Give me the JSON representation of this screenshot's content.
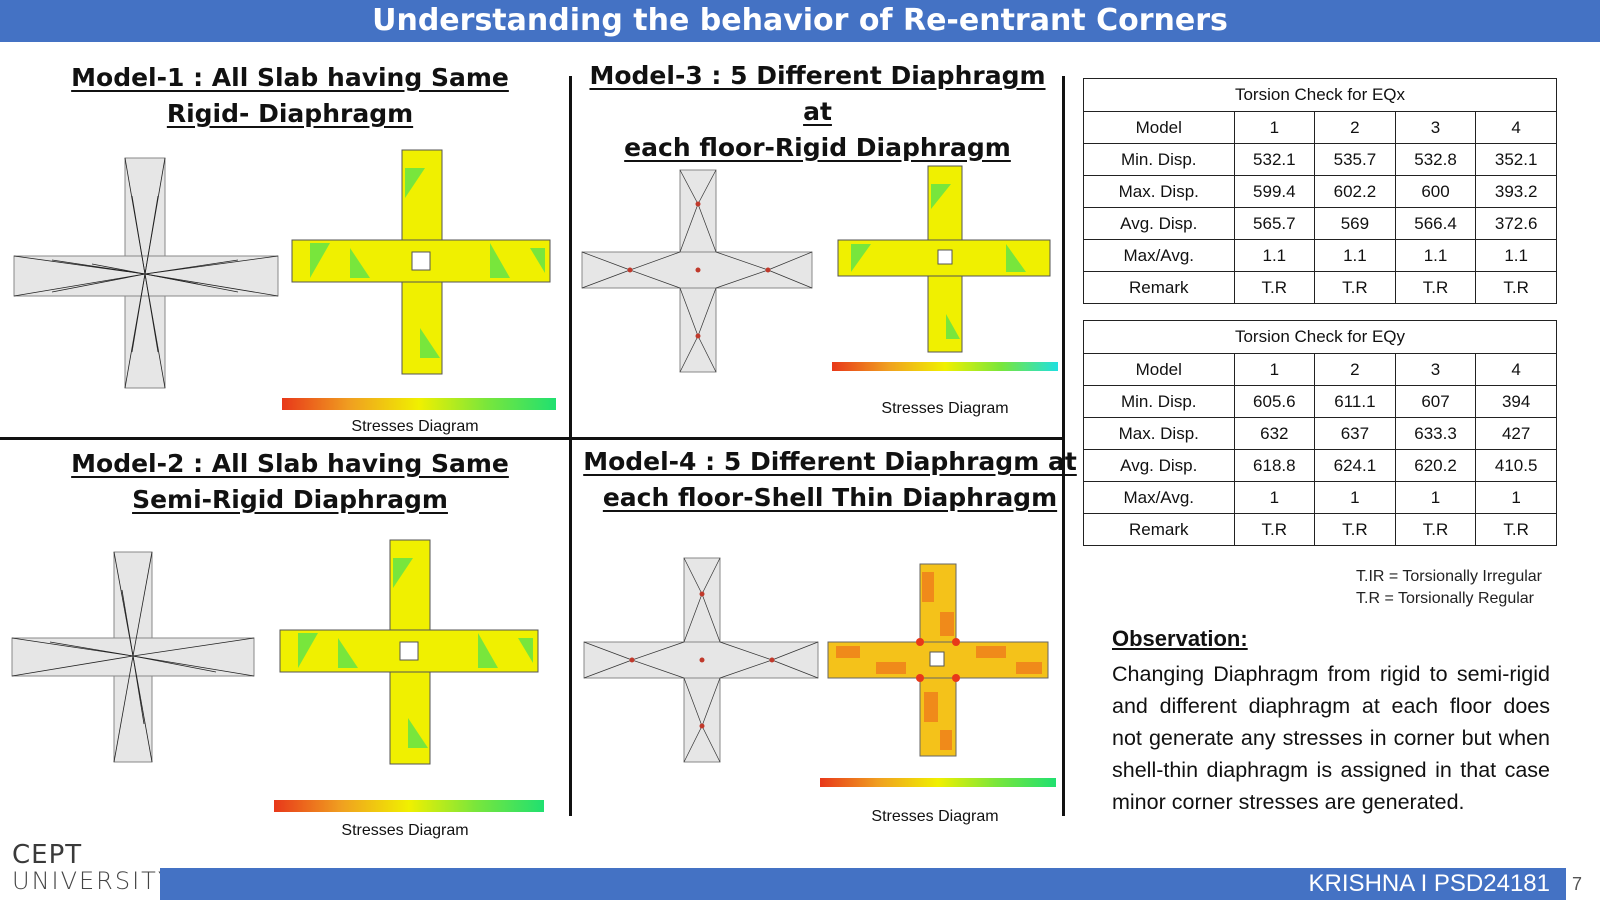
{
  "header": {
    "title": "Understanding the behavior of Re-entrant Corners"
  },
  "models": [
    {
      "title_l1": "Model-1 : All Slab having Same",
      "title_l2": "Rigid- Diaphragm",
      "caption": "Stresses Diagram"
    },
    {
      "title_l1": "Model-2 : All Slab having Same",
      "title_l2": "Semi-Rigid Diaphragm",
      "caption": "Stresses Diagram"
    },
    {
      "title_l1": "Model-3 : 5 Different Diaphragm at",
      "title_l2": "each floor-Rigid Diaphragm",
      "caption": "Stresses Diagram"
    },
    {
      "title_l1": "Model-4 : 5 Different Diaphragm at",
      "title_l2": "each floor-Shell Thin Diaphragm",
      "caption": "Stresses Diagram"
    }
  ],
  "tables": [
    {
      "title": "Torsion Check for EQx",
      "header": [
        "Model",
        "1",
        "2",
        "3",
        "4"
      ],
      "rows": [
        [
          "Min. Disp.",
          "532.1",
          "535.7",
          "532.8",
          "352.1"
        ],
        [
          "Max. Disp.",
          "599.4",
          "602.2",
          "600",
          "393.2"
        ],
        [
          "Avg. Disp.",
          "565.7",
          "569",
          "566.4",
          "372.6"
        ],
        [
          "Max/Avg.",
          "1.1",
          "1.1",
          "1.1",
          "1.1"
        ],
        [
          "Remark",
          "T.R",
          "T.R",
          "T.R",
          "T.R"
        ]
      ]
    },
    {
      "title": "Torsion Check for EQy",
      "header": [
        "Model",
        "1",
        "2",
        "3",
        "4"
      ],
      "rows": [
        [
          "Min. Disp.",
          "605.6",
          "611.1",
          "607",
          "394"
        ],
        [
          "Max. Disp.",
          "632",
          "637",
          "633.3",
          "427"
        ],
        [
          "Avg. Disp.",
          "618.8",
          "624.1",
          "620.2",
          "410.5"
        ],
        [
          "Max/Avg.",
          "1",
          "1",
          "1",
          "1"
        ],
        [
          "Remark",
          "T.R",
          "T.R",
          "T.R",
          "T.R"
        ]
      ]
    }
  ],
  "legend": {
    "line1": "T.IR = Torsionally Irregular",
    "line2": "T.R = Torsionally Regular"
  },
  "observation": {
    "heading": "Observation:",
    "text": "Changing Diaphragm from rigid to semi-rigid and different diaphragm at each floor does not generate any stresses in corner but when shell-thin diaphragm is assigned in that case  minor corner stresses are generated."
  },
  "footer": {
    "logo_line1": "CEPT",
    "logo_line2": "UNIVERSITY",
    "author": "KRISHNA I PSD24181",
    "page": "7"
  },
  "colors": {
    "bar": "#4472c4",
    "slab_yellow": "#f0f000",
    "slab_green": "#78e63c",
    "slab_orange": "#f08a1a"
  }
}
